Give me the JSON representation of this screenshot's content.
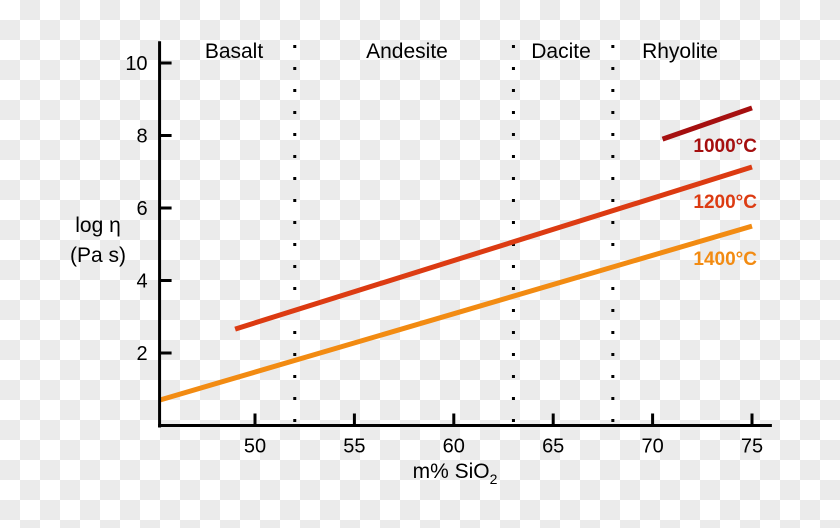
{
  "chart_data": {
    "type": "line",
    "title": "",
    "xlabel": "m% SiO",
    "xlabel_subscript": "2",
    "ylabel": [
      "log η",
      "(Pa s)"
    ],
    "xlim": [
      45.2,
      76
    ],
    "ylim": [
      0,
      10.6
    ],
    "xticks": [
      50,
      55,
      60,
      65,
      70,
      75
    ],
    "yticks": [
      2,
      4,
      6,
      8,
      10
    ],
    "grid": false,
    "regions": [
      {
        "label": "Basalt",
        "from": 45.2,
        "to": 52
      },
      {
        "label": "Andesite",
        "from": 52,
        "to": 63
      },
      {
        "label": "Dacite",
        "from": 63,
        "to": 68
      },
      {
        "label": "Rhyolite",
        "from": 68,
        "to": 76
      }
    ],
    "dividers": [
      52,
      63,
      68
    ],
    "series": [
      {
        "name": "1000°C",
        "color": "#a50f0f",
        "x": [
          70.5,
          75
        ],
        "y": [
          7.9,
          8.76
        ]
      },
      {
        "name": "1200°C",
        "color": "#dc3b12",
        "x": [
          49,
          75
        ],
        "y": [
          2.66,
          7.13
        ]
      },
      {
        "name": "1400°C",
        "color": "#f28b12",
        "x": [
          45.2,
          75
        ],
        "y": [
          0.7,
          5.5
        ]
      }
    ]
  }
}
